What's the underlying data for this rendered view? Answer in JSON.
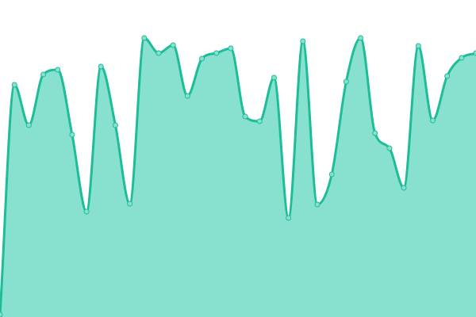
{
  "chart_data": {
    "type": "area",
    "title": "",
    "xlabel": "",
    "ylabel": "",
    "grid": false,
    "legend": "none",
    "x": [
      0,
      1,
      2,
      3,
      4,
      5,
      6,
      7,
      8,
      9,
      10,
      11,
      12,
      13,
      14,
      15,
      16,
      17,
      18,
      19,
      20,
      21,
      22,
      23,
      24,
      25,
      26,
      27,
      28,
      29,
      30,
      31,
      32,
      33
    ],
    "series": [
      {
        "values": [
          3,
          293,
          242,
          306,
          312,
          230,
          133,
          316,
          242,
          143,
          352,
          333,
          343,
          279,
          326,
          333,
          339,
          253,
          247,
          302,
          125,
          348,
          142,
          180,
          297,
          352,
          232,
          213,
          163,
          342,
          248,
          304,
          327,
          333
        ]
      }
    ],
    "xlim": [
      0,
      33
    ],
    "ylim": [
      0,
      400
    ],
    "colors": {
      "line": "#1dbd98",
      "fill": "#88e0cf",
      "marker_fill": "#88e0cf",
      "marker_stroke": "#1dbd98"
    }
  }
}
